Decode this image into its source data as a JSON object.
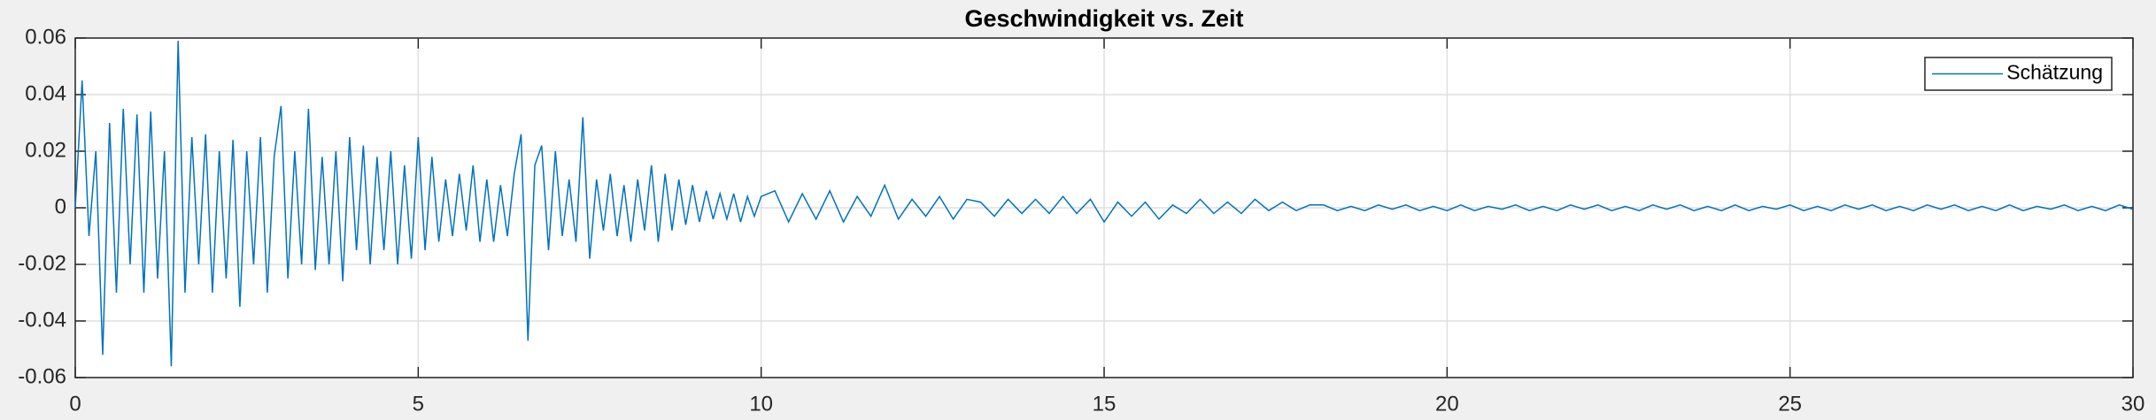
{
  "chart_data": {
    "type": "line",
    "title": "Geschwindigkeit vs. Zeit",
    "x": [
      0,
      0.1,
      0.2,
      0.3,
      0.4,
      0.5,
      0.6,
      0.7,
      0.8,
      0.9,
      1.0,
      1.1,
      1.2,
      1.3,
      1.4,
      1.5,
      1.6,
      1.7,
      1.8,
      1.9,
      2.0,
      2.1,
      2.2,
      2.3,
      2.4,
      2.5,
      2.6,
      2.7,
      2.8,
      2.9,
      3.0,
      3.1,
      3.2,
      3.3,
      3.4,
      3.5,
      3.6,
      3.7,
      3.8,
      3.9,
      4.0,
      4.1,
      4.2,
      4.3,
      4.4,
      4.5,
      4.6,
      4.7,
      4.8,
      4.9,
      5.0,
      5.1,
      5.2,
      5.3,
      5.4,
      5.5,
      5.6,
      5.7,
      5.8,
      5.9,
      6.0,
      6.1,
      6.2,
      6.3,
      6.4,
      6.5,
      6.6,
      6.7,
      6.8,
      6.9,
      7.0,
      7.1,
      7.2,
      7.3,
      7.4,
      7.5,
      7.6,
      7.7,
      7.8,
      7.9,
      8.0,
      8.1,
      8.2,
      8.3,
      8.4,
      8.5,
      8.6,
      8.7,
      8.8,
      8.9,
      9.0,
      9.1,
      9.2,
      9.3,
      9.4,
      9.5,
      9.6,
      9.7,
      9.8,
      9.9,
      10.0,
      10.2,
      10.4,
      10.6,
      10.8,
      11.0,
      11.2,
      11.4,
      11.6,
      11.8,
      12.0,
      12.2,
      12.4,
      12.6,
      12.8,
      13.0,
      13.2,
      13.4,
      13.6,
      13.8,
      14.0,
      14.2,
      14.4,
      14.6,
      14.8,
      15.0,
      15.2,
      15.4,
      15.6,
      15.8,
      16.0,
      16.2,
      16.4,
      16.6,
      16.8,
      17.0,
      17.2,
      17.4,
      17.6,
      17.8,
      18.0,
      18.2,
      18.4,
      18.6,
      18.8,
      19.0,
      19.2,
      19.4,
      19.6,
      19.8,
      20.0,
      20.2,
      20.4,
      20.6,
      20.8,
      21.0,
      21.2,
      21.4,
      21.6,
      21.8,
      22.0,
      22.2,
      22.4,
      22.6,
      22.8,
      23.0,
      23.2,
      23.4,
      23.6,
      23.8,
      24.0,
      24.2,
      24.4,
      24.6,
      24.8,
      25.0,
      25.2,
      25.4,
      25.6,
      25.8,
      26.0,
      26.2,
      26.4,
      26.6,
      26.8,
      27.0,
      27.2,
      27.4,
      27.6,
      27.8,
      28.0,
      28.2,
      28.4,
      28.6,
      28.8,
      29.0,
      29.2,
      29.4,
      29.6,
      29.8,
      30.0
    ],
    "series": [
      {
        "name": "Schätzung",
        "color": "#0072bd",
        "values": [
          0,
          0.045,
          -0.01,
          0.02,
          -0.052,
          0.03,
          -0.03,
          0.035,
          -0.02,
          0.033,
          -0.03,
          0.034,
          -0.025,
          0.02,
          -0.056,
          0.059,
          -0.03,
          0.025,
          -0.02,
          0.026,
          -0.03,
          0.02,
          -0.025,
          0.024,
          -0.035,
          0.02,
          -0.02,
          0.025,
          -0.03,
          0.018,
          0.036,
          -0.025,
          0.02,
          -0.02,
          0.035,
          -0.022,
          0.018,
          -0.02,
          0.02,
          -0.026,
          0.025,
          -0.015,
          0.022,
          -0.02,
          0.018,
          -0.015,
          0.02,
          -0.02,
          0.015,
          -0.018,
          0.025,
          -0.015,
          0.018,
          -0.012,
          0.01,
          -0.01,
          0.012,
          -0.008,
          0.015,
          -0.012,
          0.01,
          -0.012,
          0.008,
          -0.01,
          0.012,
          0.026,
          -0.047,
          0.015,
          0.022,
          -0.015,
          0.02,
          -0.01,
          0.01,
          -0.012,
          0.032,
          -0.018,
          0.01,
          -0.008,
          0.012,
          -0.01,
          0.008,
          -0.012,
          0.01,
          -0.008,
          0.015,
          -0.012,
          0.012,
          -0.008,
          0.01,
          -0.006,
          0.008,
          -0.005,
          0.006,
          -0.004,
          0.005,
          -0.004,
          0.005,
          -0.005,
          0.004,
          -0.003,
          0.004,
          0.006,
          -0.005,
          0.005,
          -0.004,
          0.006,
          -0.005,
          0.004,
          -0.003,
          0.008,
          -0.004,
          0.003,
          -0.003,
          0.004,
          -0.004,
          0.003,
          0.002,
          -0.003,
          0.003,
          -0.002,
          0.003,
          -0.002,
          0.004,
          -0.002,
          0.003,
          -0.005,
          0.002,
          -0.003,
          0.002,
          -0.004,
          0.001,
          -0.002,
          0.003,
          -0.002,
          0.002,
          -0.002,
          0.003,
          -0.001,
          0.002,
          -0.001,
          0.001,
          0.001,
          -0.001,
          0.0005,
          -0.001,
          0.001,
          -0.0005,
          0.001,
          -0.001,
          0.0005,
          -0.001,
          0.001,
          -0.001,
          0.0005,
          -0.0005,
          0.001,
          -0.001,
          0.0005,
          -0.001,
          0.001,
          -0.0005,
          0.001,
          -0.001,
          0.0005,
          -0.001,
          0.001,
          -0.0005,
          0.001,
          -0.001,
          0.0005,
          -0.001,
          0.001,
          -0.001,
          0.0005,
          -0.0005,
          0.001,
          -0.001,
          0.0005,
          -0.001,
          0.001,
          -0.0005,
          0.001,
          -0.001,
          0.0005,
          -0.001,
          0.001,
          -0.0005,
          0.001,
          -0.001,
          0.0005,
          -0.001,
          0.001,
          -0.001,
          0.0005,
          -0.0005,
          0.001,
          -0.001,
          0.0005,
          -0.001,
          0.001,
          -0.0005
        ]
      }
    ],
    "xlim": [
      0,
      30
    ],
    "xticks": [
      0,
      5,
      10,
      15,
      20,
      25,
      30
    ],
    "ylim": [
      -0.06,
      0.06
    ],
    "yticks": [
      -0.06,
      -0.04,
      -0.02,
      0,
      0.02,
      0.04,
      0.06
    ],
    "grid": true,
    "legend": "top-right"
  }
}
